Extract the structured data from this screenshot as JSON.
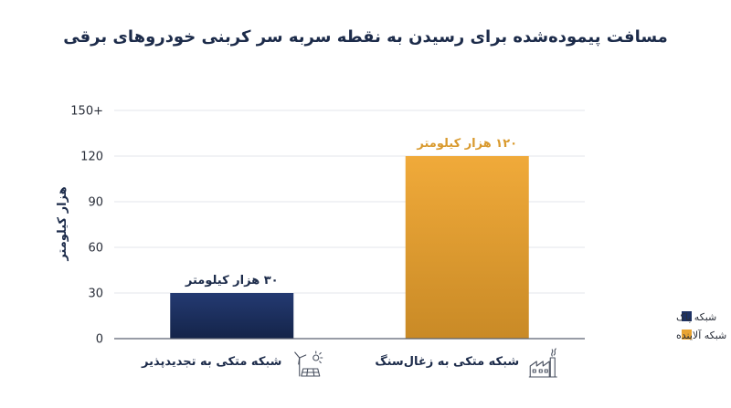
{
  "chart_data": {
    "type": "bar",
    "title": "مسافت پیموده‌شده برای رسیدن به نقطه سربه سر کربنی خودروهای برقی",
    "ylabel": "هزار کیلومتر",
    "xlabel": "",
    "ylim": [
      0,
      150
    ],
    "yticks": [
      {
        "value": 0,
        "label": "0"
      },
      {
        "value": 30,
        "label": "30"
      },
      {
        "value": 60,
        "label": "60"
      },
      {
        "value": 90,
        "label": "90"
      },
      {
        "value": 120,
        "label": "120"
      },
      {
        "value": 150,
        "label": "150+"
      }
    ],
    "grid": true,
    "legend_position": "bottom-right",
    "categories": [
      {
        "label": "شبکه متکی به تجدیدپذیر",
        "value": 30,
        "data_label": "۳۰ هزار کیلومتر",
        "series": "شبکه پاک",
        "icon": "renewables-icon"
      },
      {
        "label": "شبکه متکی به زغال‌سنگ",
        "value": 120,
        "data_label": "۱۲۰ هزار کیلومتر",
        "series": "شبکه آلاینده",
        "icon": "factory-icon"
      }
    ],
    "legend": [
      {
        "name": "شبکه پاک",
        "color": "#1e3264"
      },
      {
        "name": "شبکه آلاینده",
        "color": "#e8a433"
      }
    ],
    "colors": {
      "clean_top": "#243a72",
      "clean_bottom": "#142449",
      "polluting_top": "#f0aa3a",
      "polluting_bottom": "#c98a26",
      "polluting_label": "#d99a2e",
      "clean_label": "#1c2b4a"
    }
  }
}
